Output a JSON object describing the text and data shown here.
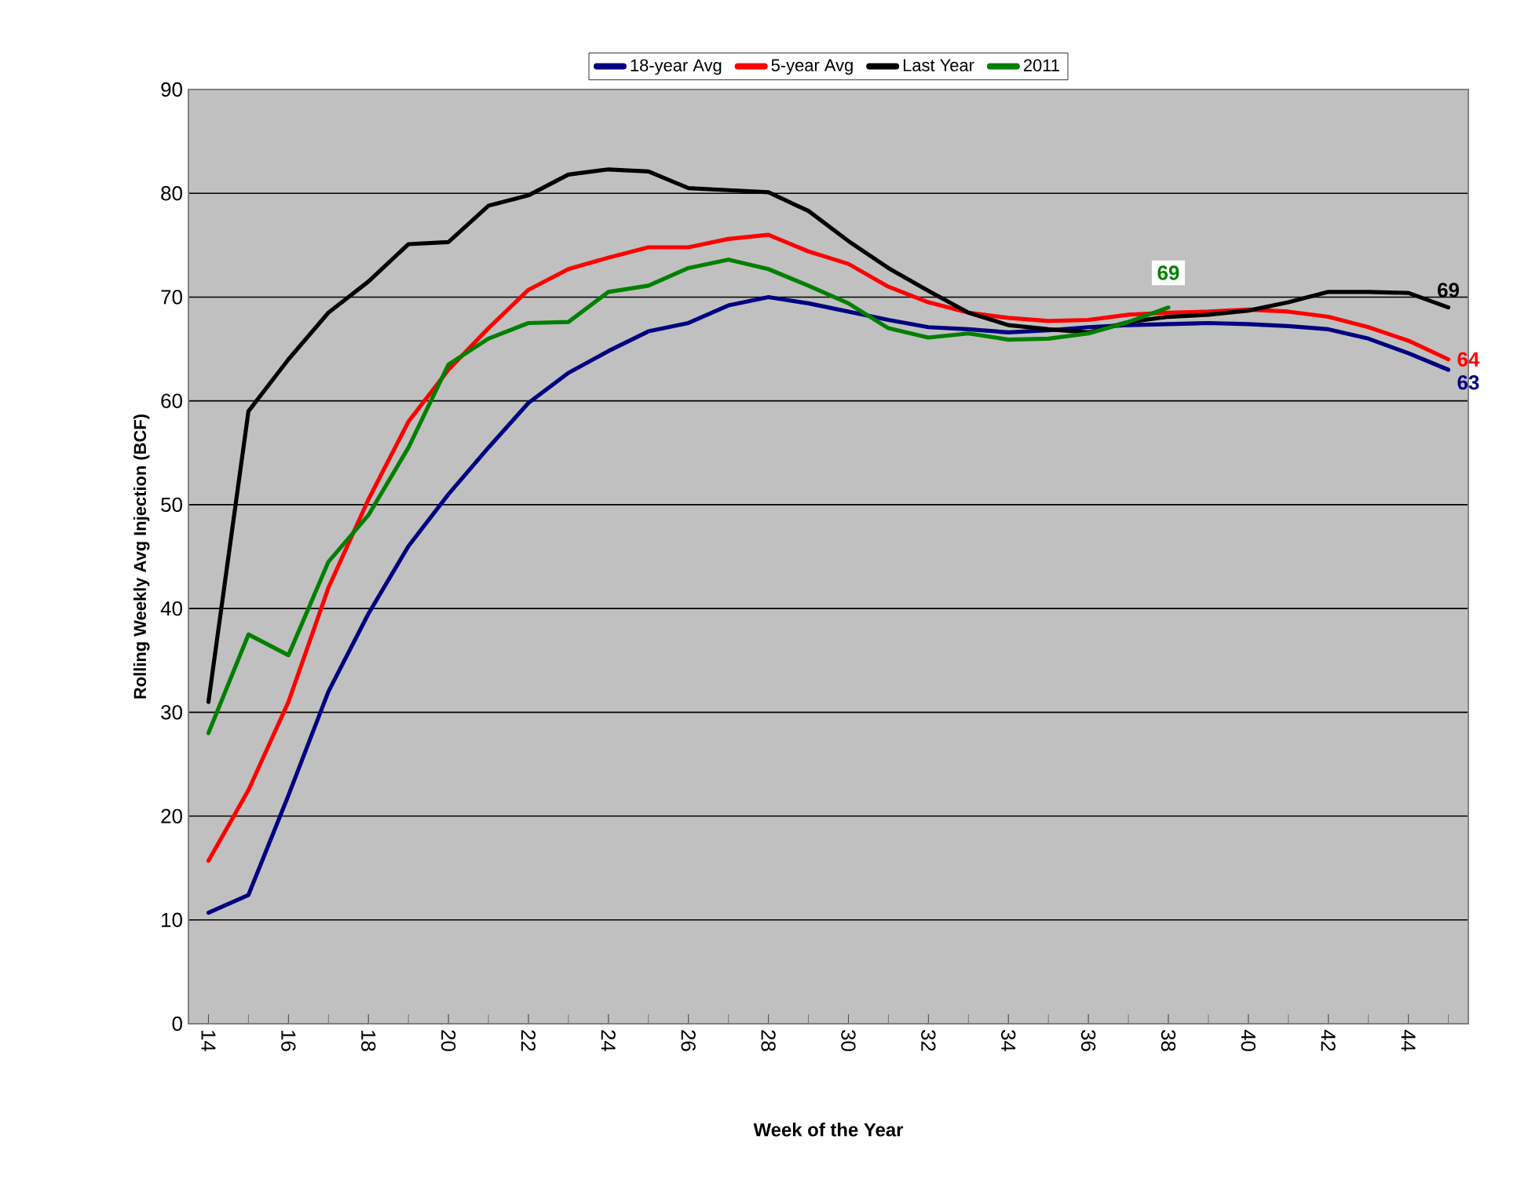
{
  "chart_data": {
    "type": "line",
    "xlabel": "Week of the Year",
    "ylabel": "Rolling Weekly Avg Injection (BCF)",
    "x": [
      14,
      15,
      16,
      17,
      18,
      19,
      20,
      21,
      22,
      23,
      24,
      25,
      26,
      27,
      28,
      29,
      30,
      31,
      32,
      33,
      34,
      35,
      36,
      37,
      38,
      39,
      40,
      41,
      42,
      43,
      44,
      45
    ],
    "xlim": [
      13.5,
      45.5
    ],
    "xticks": [
      14,
      16,
      18,
      20,
      22,
      24,
      26,
      28,
      30,
      32,
      34,
      36,
      38,
      40,
      42,
      44
    ],
    "ylim": [
      0,
      90
    ],
    "yticks": [
      0,
      10,
      20,
      30,
      40,
      50,
      60,
      70,
      80,
      90
    ],
    "grid": "y",
    "legend": "top",
    "marker": "none",
    "line_style": "solid",
    "series": [
      {
        "name": "18-year Avg",
        "color": "#000080",
        "values": [
          10.7,
          12.4,
          22,
          32,
          39.5,
          46,
          51,
          55.5,
          59.8,
          62.7,
          64.8,
          66.7,
          67.5,
          69.2,
          70,
          69.4,
          68.6,
          67.8,
          67.1,
          66.9,
          66.6,
          66.8,
          67.1,
          67.3,
          67.4,
          67.5,
          67.4,
          67.2,
          66.9,
          66,
          64.6,
          63
        ],
        "value_labels": [
          null,
          null,
          null,
          null,
          null,
          null,
          null,
          null,
          null,
          null,
          null,
          null,
          null,
          null,
          null,
          null,
          null,
          null,
          null,
          null,
          null,
          null,
          null,
          null,
          null,
          null,
          null,
          null,
          null,
          null,
          null,
          "63"
        ]
      },
      {
        "name": "5-year Avg",
        "color": "#ff0000",
        "values": [
          15.7,
          22.5,
          31,
          42,
          50.5,
          58,
          63,
          67,
          70.7,
          72.7,
          73.8,
          74.8,
          74.8,
          75.6,
          76,
          74.4,
          73.2,
          71,
          69.5,
          68.5,
          68,
          67.7,
          67.8,
          68.3,
          68.5,
          68.6,
          68.8,
          68.6,
          68.1,
          67.1,
          65.8,
          64
        ],
        "value_labels": [
          null,
          null,
          null,
          null,
          null,
          null,
          null,
          null,
          null,
          null,
          null,
          null,
          null,
          null,
          null,
          null,
          null,
          null,
          null,
          null,
          null,
          null,
          null,
          null,
          null,
          null,
          null,
          null,
          null,
          null,
          null,
          "64"
        ]
      },
      {
        "name": "Last Year",
        "color": "#000000",
        "values": [
          31,
          59,
          64,
          68.5,
          71.5,
          75.1,
          75.3,
          78.8,
          79.8,
          81.8,
          82.3,
          82.1,
          80.5,
          80.3,
          80.1,
          78.3,
          75.4,
          72.8,
          70.6,
          68.5,
          67.3,
          66.9,
          66.6,
          67.6,
          68.1,
          68.3,
          68.7,
          69.5,
          70.5,
          70.5,
          70.4,
          69
        ],
        "value_labels": [
          null,
          null,
          null,
          null,
          null,
          null,
          null,
          null,
          null,
          null,
          null,
          null,
          null,
          null,
          null,
          null,
          null,
          null,
          null,
          null,
          null,
          null,
          null,
          null,
          null,
          null,
          null,
          null,
          null,
          null,
          null,
          "69"
        ]
      },
      {
        "name": "2011",
        "color": "#008000",
        "values": [
          28,
          37.5,
          35.5,
          44.5,
          49,
          55.5,
          63.5,
          66,
          67.5,
          67.6,
          70.5,
          71.1,
          72.8,
          73.6,
          72.7,
          71.1,
          69.4,
          67,
          66.1,
          66.5,
          65.9,
          66,
          66.5,
          67.6,
          69,
          null,
          null,
          null,
          null,
          null,
          null,
          null
        ],
        "value_labels": [
          null,
          null,
          null,
          null,
          null,
          null,
          null,
          null,
          null,
          null,
          null,
          null,
          null,
          null,
          null,
          null,
          null,
          null,
          null,
          null,
          null,
          null,
          null,
          null,
          "69",
          null,
          null,
          null,
          null,
          null,
          null,
          null
        ]
      }
    ]
  }
}
